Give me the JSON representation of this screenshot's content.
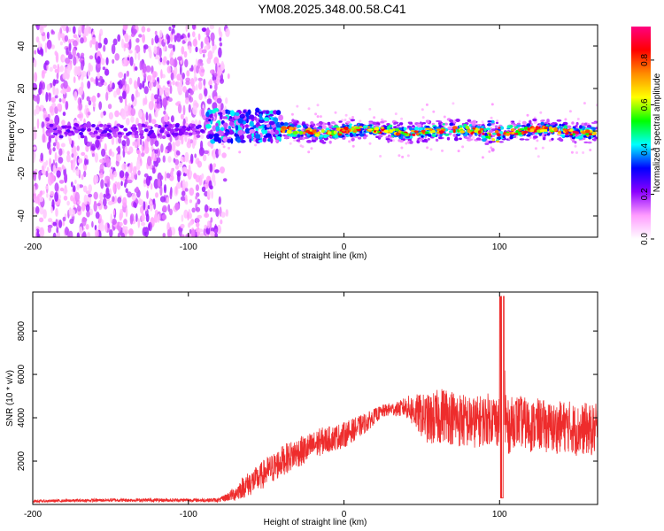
{
  "page_title": "YM08.2025.348.00.58.C41",
  "chart_data": [
    {
      "type": "heatmap",
      "title": "YM08.2025.348.00.58.C41",
      "xlabel": "Height of straight line (km)",
      "ylabel": "Frequency (Hz)",
      "xlim": [
        -200,
        163
      ],
      "ylim": [
        -50,
        50
      ],
      "x_ticks": [
        -200,
        -100,
        0,
        100
      ],
      "x_tick_labels": [
        "-200",
        "-100",
        "0",
        "100"
      ],
      "y_ticks": [
        -40,
        -20,
        0,
        20,
        40
      ],
      "y_tick_labels": [
        "-40",
        "-20",
        "0",
        "20",
        "40"
      ],
      "grid": false,
      "colorbar": {
        "label": "Normalized spectral amplitude",
        "range": [
          0,
          0.95
        ],
        "ticks": [
          0,
          0.2,
          0.4,
          0.6,
          0.8
        ],
        "tick_labels": [
          "0.0",
          "0.2",
          "0.4",
          "0.6",
          "0.8"
        ],
        "colormap_stops": [
          "#ffffff",
          "#ff9cff",
          "#8b00ff",
          "#0000ff",
          "#00ffff",
          "#00ff00",
          "#ffff00",
          "#ff8c00",
          "#ff0000",
          "#ff0080"
        ]
      },
      "features": [
        {
          "name": "diffuse-noise",
          "x_range": [
            -200,
            -78
          ],
          "freq_range": [
            -50,
            50
          ],
          "amplitude": 0.15
        },
        {
          "name": "ridge-onset",
          "x_range": [
            -88,
            -40
          ],
          "freq_range": [
            -5,
            10
          ],
          "amplitude": 0.35
        },
        {
          "name": "main-ridge",
          "x_range": [
            -40,
            163
          ],
          "freq_center": 0,
          "freq_halfwidth": 3,
          "amplitude": 0.85
        }
      ]
    },
    {
      "type": "line",
      "xlabel": "Height of straight line (km)",
      "ylabel": "SNR (10 * v/v)",
      "xlim": [
        -200,
        163
      ],
      "ylim": [
        0,
        9800
      ],
      "x_ticks": [
        -200,
        -100,
        0,
        100
      ],
      "x_tick_labels": [
        "-200",
        "-100",
        "0",
        "100"
      ],
      "y_ticks": [
        2000,
        4000,
        6000,
        8000
      ],
      "y_tick_labels": [
        "2000",
        "4000",
        "6000",
        "8000"
      ],
      "grid": false,
      "series": [
        {
          "name": "SNR",
          "color": "#ee2c2c",
          "x": [
            -200,
            -150,
            -100,
            -80,
            -75,
            -70,
            -65,
            -60,
            -55,
            -50,
            -45,
            -40,
            -35,
            -30,
            -25,
            -20,
            -15,
            -10,
            -5,
            0,
            5,
            10,
            15,
            20,
            25,
            30,
            35,
            40,
            45,
            50,
            55,
            60,
            65,
            70,
            75,
            80,
            85,
            90,
            95,
            100,
            102,
            105,
            110,
            115,
            120,
            125,
            130,
            135,
            140,
            145,
            150,
            155,
            160,
            163
          ],
          "values": [
            150,
            200,
            200,
            200,
            350,
            500,
            800,
            1000,
            1200,
            1500,
            1700,
            2000,
            2200,
            2400,
            2500,
            2700,
            2900,
            3000,
            3100,
            3200,
            3400,
            3600,
            3800,
            4100,
            4300,
            4400,
            4400,
            4500,
            4300,
            4100,
            3900,
            4000,
            4200,
            4000,
            3900,
            3800,
            3800,
            3900,
            4000,
            3800,
            5000,
            3500,
            3900,
            3800,
            3600,
            3700,
            3600,
            3500,
            3600,
            3600,
            3400,
            3500,
            3400,
            3500
          ],
          "spread": [
            60,
            80,
            80,
            100,
            200,
            350,
            500,
            600,
            600,
            700,
            700,
            700,
            700,
            700,
            700,
            650,
            650,
            600,
            600,
            600,
            550,
            500,
            450,
            350,
            300,
            300,
            350,
            500,
            800,
            1000,
            1200,
            1300,
            1300,
            1300,
            1300,
            1200,
            1200,
            1200,
            1200,
            1200,
            4000,
            1300,
            1200,
            1200,
            1200,
            1200,
            1200,
            1200,
            1200,
            1200,
            1200,
            1200,
            1200,
            1200
          ]
        }
      ]
    }
  ]
}
